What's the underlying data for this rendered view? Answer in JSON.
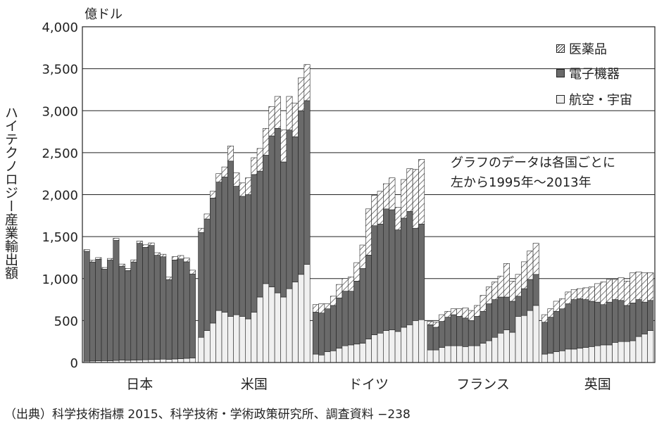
{
  "chart_data": {
    "type": "bar",
    "stacked": true,
    "unit": "億ドル",
    "ylabel": "ハイテクノロジー産業輸出額",
    "ylim": [
      0,
      4000
    ],
    "yticks": [
      "0",
      "500",
      "1,000",
      "1,500",
      "2,000",
      "2,500",
      "3,000",
      "3,500",
      "4,000"
    ],
    "ytick_values": [
      0,
      500,
      1000,
      1500,
      2000,
      2500,
      3000,
      3500,
      4000
    ],
    "grid": true,
    "groups": [
      "日本",
      "米国",
      "ドイツ",
      "フランス",
      "英国"
    ],
    "note_lines": [
      "グラフのデータは各国ごとに",
      "左から1995年〜2013年"
    ],
    "legend": [
      {
        "name": "医薬品",
        "key": "pharma"
      },
      {
        "name": "電子機器",
        "key": "electronics"
      },
      {
        "name": "航空・宇宙",
        "key": "aerospace"
      }
    ],
    "data": {
      "日本": {
        "aerospace": [
          15,
          18,
          20,
          22,
          20,
          25,
          28,
          26,
          28,
          30,
          32,
          35,
          38,
          40,
          38,
          42,
          45,
          50,
          55
        ],
        "electronics": [
          1310,
          1180,
          1210,
          1090,
          1200,
          1430,
          1120,
          1070,
          1170,
          1390,
          1340,
          1360,
          1240,
          1220,
          950,
          1180,
          1190,
          1150,
          1000
        ],
        "pharma": [
          20,
          20,
          20,
          20,
          20,
          25,
          25,
          25,
          25,
          28,
          30,
          30,
          30,
          30,
          30,
          40,
          40,
          45,
          45
        ]
      },
      "米国": {
        "aerospace": [
          300,
          380,
          470,
          620,
          600,
          550,
          570,
          550,
          520,
          600,
          780,
          940,
          900,
          830,
          780,
          880,
          960,
          1050,
          1170
        ],
        "electronics": [
          1250,
          1330,
          1490,
          1530,
          1610,
          1850,
          1530,
          1430,
          1480,
          1640,
          1500,
          1530,
          1800,
          1960,
          1610,
          1890,
          1730,
          1950,
          1950
        ],
        "pharma": [
          50,
          60,
          80,
          100,
          120,
          180,
          160,
          160,
          200,
          200,
          270,
          320,
          350,
          380,
          380,
          400,
          400,
          390,
          430
        ]
      },
      "ドイツ": {
        "aerospace": [
          100,
          90,
          130,
          140,
          170,
          200,
          210,
          220,
          230,
          280,
          330,
          350,
          380,
          390,
          370,
          420,
          450,
          500,
          510
        ],
        "electronics": [
          500,
          500,
          510,
          540,
          600,
          650,
          640,
          750,
          890,
          1000,
          1300,
          1300,
          1450,
          1430,
          1210,
          1300,
          1350,
          1100,
          1140
        ],
        "pharma": [
          90,
          110,
          60,
          110,
          160,
          150,
          170,
          220,
          280,
          550,
          360,
          390,
          300,
          380,
          270,
          460,
          510,
          700,
          770
        ]
      },
      "フランス": {
        "aerospace": [
          150,
          150,
          180,
          200,
          200,
          200,
          190,
          200,
          200,
          230,
          260,
          300,
          350,
          390,
          360,
          550,
          560,
          620,
          680
        ],
        "electronics": [
          300,
          270,
          310,
          340,
          370,
          350,
          340,
          300,
          350,
          380,
          440,
          450,
          430,
          390,
          370,
          240,
          320,
          370,
          370
        ],
        "pharma": [
          40,
          60,
          80,
          70,
          70,
          90,
          120,
          120,
          130,
          190,
          200,
          210,
          250,
          400,
          240,
          260,
          320,
          340,
          370
        ]
      },
      "英国": {
        "aerospace": [
          100,
          110,
          130,
          140,
          160,
          160,
          170,
          180,
          190,
          200,
          210,
          210,
          240,
          250,
          250,
          260,
          310,
          340,
          380
        ],
        "electronics": [
          380,
          430,
          480,
          500,
          540,
          590,
          590,
          570,
          540,
          520,
          480,
          510,
          510,
          490,
          430,
          450,
          440,
          380,
          360
        ],
        "pharma": [
          90,
          100,
          120,
          120,
          140,
          120,
          120,
          140,
          170,
          220,
          270,
          270,
          240,
          270,
          290,
          360,
          330,
          350,
          330
        ]
      }
    }
  },
  "source": "（出典）科学技術指標 2015、科学技術・学術政策研究所、調査資料 −238"
}
